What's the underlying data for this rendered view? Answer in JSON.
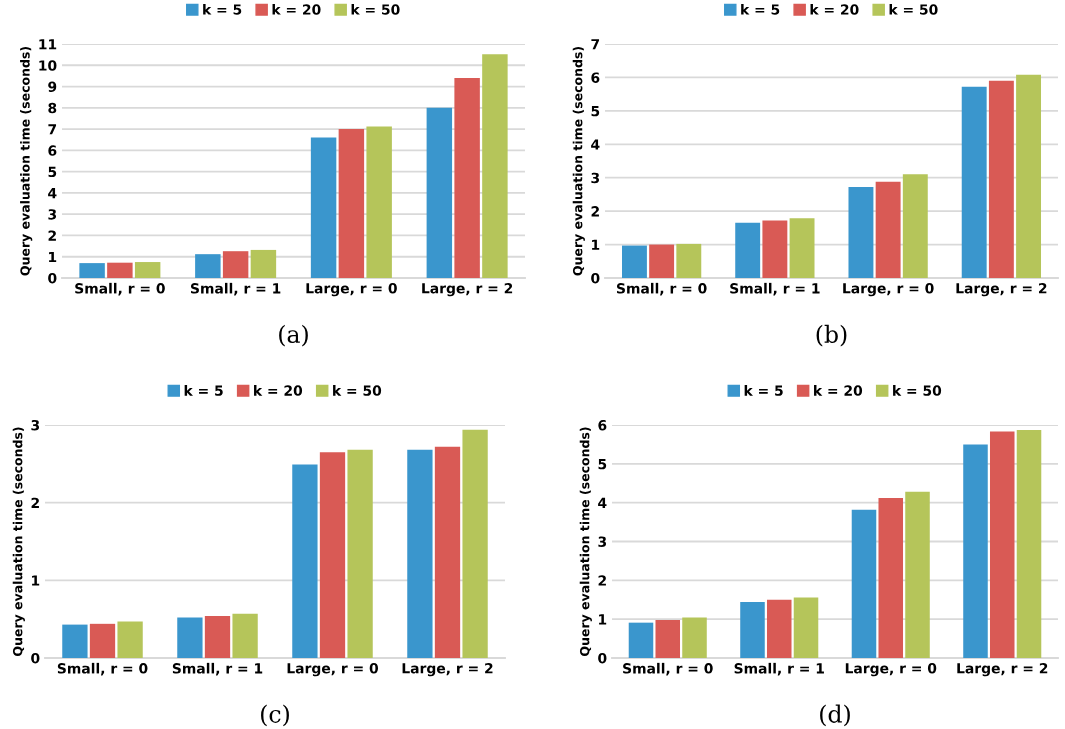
{
  "chart_data": [
    {
      "type": "bar",
      "title": "(a)",
      "ylabel": "Query evaluation time (seconds)",
      "categories": [
        "Small, r = 0",
        "Small, r = 1",
        "Large, r = 0",
        "Large, r = 2"
      ],
      "series": [
        {
          "name": "k = 5",
          "color": "#3a96cd",
          "values": [
            0.7,
            1.12,
            6.6,
            8.0
          ]
        },
        {
          "name": "k = 20",
          "color": "#d95a55",
          "values": [
            0.72,
            1.26,
            7.0,
            9.4
          ]
        },
        {
          "name": "k = 50",
          "color": "#b5c55a",
          "values": [
            0.75,
            1.32,
            7.12,
            10.52
          ]
        }
      ],
      "ylim": [
        0,
        11
      ],
      "yticks": [
        0,
        1,
        2,
        3,
        4,
        5,
        6,
        7,
        8,
        9,
        10,
        11
      ],
      "grid": "y",
      "legend": "top"
    },
    {
      "type": "bar",
      "title": "(b)",
      "ylabel": "Query evaluation time (seconds)",
      "categories": [
        "Small, r = 0",
        "Small, r = 1",
        "Large, r = 0",
        "Large, r = 2"
      ],
      "series": [
        {
          "name": "k = 5",
          "color": "#3a96cd",
          "values": [
            0.97,
            1.65,
            2.72,
            5.72
          ]
        },
        {
          "name": "k = 20",
          "color": "#d95a55",
          "values": [
            1.0,
            1.72,
            2.88,
            5.9
          ]
        },
        {
          "name": "k = 50",
          "color": "#b5c55a",
          "values": [
            1.02,
            1.79,
            3.1,
            6.08
          ]
        }
      ],
      "ylim": [
        0,
        7
      ],
      "yticks": [
        0,
        1,
        2,
        3,
        4,
        5,
        6,
        7
      ],
      "grid": "y",
      "legend": "top"
    },
    {
      "type": "bar",
      "title": "(c)",
      "ylabel": "Query evaluation time (seconds)",
      "categories": [
        "Small, r = 0",
        "Small, r = 1",
        "Large, r = 0",
        "Large, r = 2"
      ],
      "series": [
        {
          "name": "k = 5",
          "color": "#3a96cd",
          "values": [
            0.43,
            0.52,
            2.49,
            2.68
          ]
        },
        {
          "name": "k = 20",
          "color": "#d95a55",
          "values": [
            0.44,
            0.54,
            2.65,
            2.72
          ]
        },
        {
          "name": "k = 50",
          "color": "#b5c55a",
          "values": [
            0.47,
            0.57,
            2.68,
            2.94
          ]
        }
      ],
      "ylim": [
        0,
        3
      ],
      "yticks": [
        0,
        1,
        2,
        3
      ],
      "grid": "y",
      "legend": "top"
    },
    {
      "type": "bar",
      "title": "(d)",
      "ylabel": "Query evaluation time (seconds)",
      "categories": [
        "Small, r = 0",
        "Small, r = 1",
        "Large, r = 0",
        "Large, r = 2"
      ],
      "series": [
        {
          "name": "k = 5",
          "color": "#3a96cd",
          "values": [
            0.91,
            1.44,
            3.82,
            5.5
          ]
        },
        {
          "name": "k = 20",
          "color": "#d95a55",
          "values": [
            0.98,
            1.5,
            4.12,
            5.83
          ]
        },
        {
          "name": "k = 50",
          "color": "#b5c55a",
          "values": [
            1.04,
            1.56,
            4.28,
            5.87
          ]
        }
      ],
      "ylim": [
        0,
        6
      ],
      "yticks": [
        0,
        1,
        2,
        3,
        4,
        5,
        6
      ],
      "grid": "y",
      "legend": "top"
    }
  ]
}
